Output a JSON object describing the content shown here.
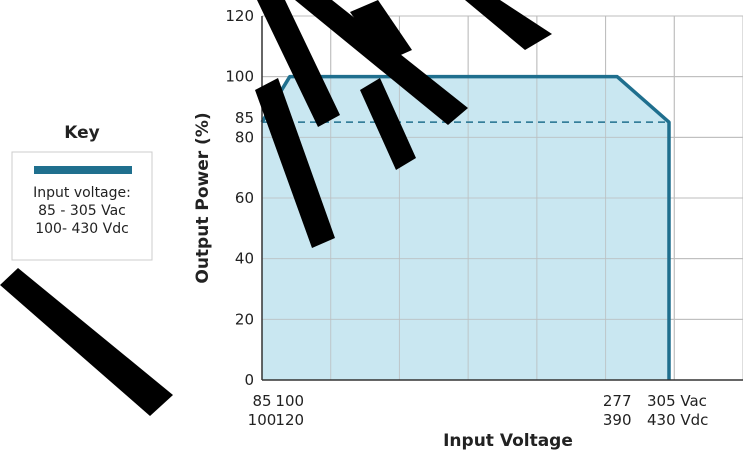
{
  "colors": {
    "line": "#1f6f8e",
    "fill": "#bfe3ef",
    "grid": "#bdbdbd",
    "dashed": "#1f6f8e",
    "watermark": "#000000"
  },
  "key": {
    "title": "Key",
    "lines": [
      "Input voltage:",
      "85 - 305 Vac",
      "100- 430 Vdc"
    ]
  },
  "chart_data": {
    "type": "area",
    "xlabel": "Input Voltage",
    "ylabel": "Output Power (%)",
    "ylim": [
      0,
      120
    ],
    "xlim": [
      85,
      345
    ],
    "x_ticks": [
      {
        "value": 85,
        "line1": "85",
        "line2": "100"
      },
      {
        "value": 100,
        "line1": "100",
        "line2": "120"
      },
      {
        "value": 277,
        "line1": "277",
        "line2": "390"
      },
      {
        "value": 305,
        "line1": "305 Vac",
        "line2": "430 Vdc"
      }
    ],
    "y_ticks": [
      0,
      20,
      40,
      60,
      80,
      100,
      120
    ],
    "y_annotation": {
      "value": 85,
      "label": "85"
    },
    "grid": true,
    "series": [
      {
        "x": [
          85,
          100,
          277,
          305
        ],
        "y": [
          85,
          100,
          100,
          85
        ]
      }
    ],
    "reference_line": {
      "y": 85,
      "x_start": 85,
      "x_end": 305,
      "style": "dashed"
    }
  }
}
